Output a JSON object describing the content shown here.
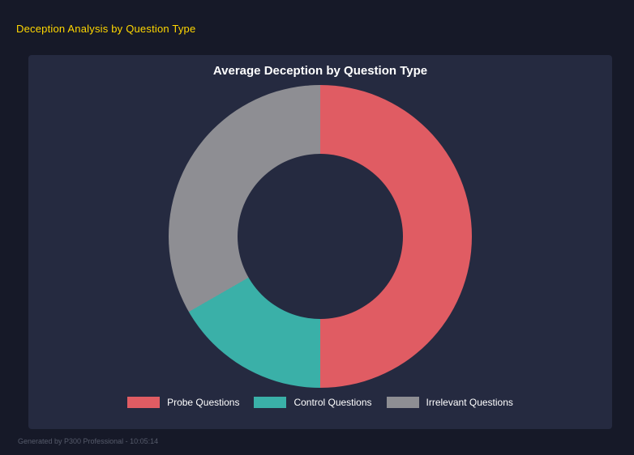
{
  "page": {
    "title": "Deception Analysis by Question Type",
    "footer": "Generated by P300 Professional - 10:05:14"
  },
  "panel": {
    "background": "#252a40"
  },
  "chart_data": {
    "type": "pie",
    "subtype": "donut",
    "title": "Average Deception by Question Type",
    "categories": [
      "Probe Questions",
      "Control Questions",
      "Irrelevant Questions"
    ],
    "values": [
      50,
      16.7,
      33.3
    ],
    "colors": [
      "#e05c63",
      "#3ab0a8",
      "#8e8e93"
    ],
    "legend_position": "bottom",
    "start_angle_deg": 0,
    "direction": "clockwise",
    "hole_ratio": 0.545
  },
  "theme": {
    "page_background": "#161928",
    "title_color": "#ffd700",
    "text_color": "#ffffff",
    "footer_color": "#565b6b"
  }
}
